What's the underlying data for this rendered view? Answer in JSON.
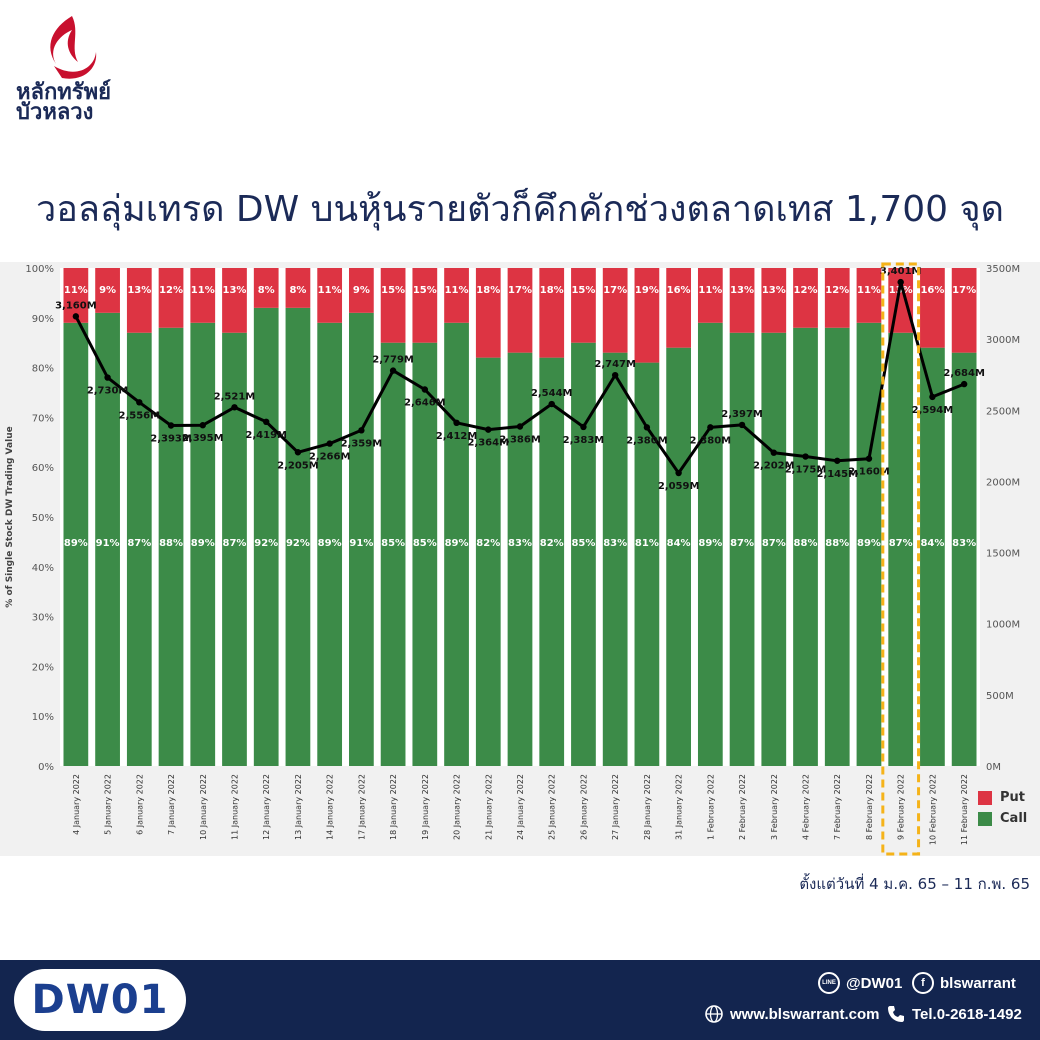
{
  "header": {
    "brand_line1": "หลักทรัพย์",
    "brand_line2": "บัวหลวง",
    "title": "วอลลุ่มเทรด DW บนหุ้นรายตัวก็คึกคักช่วงตลาดเทส 1,700 จุด"
  },
  "colors": {
    "call": "#3c8b48",
    "put": "#dd3443",
    "line": "#000000",
    "highlight": "#f5b319",
    "brand_red": "#c8102e"
  },
  "chart_data": {
    "type": "bar",
    "stacked": true,
    "ylabel": "% of Single Stock DW Trading Value",
    "ylim": [
      0,
      100
    ],
    "y_ticks": [
      "0%",
      "10%",
      "20%",
      "30%",
      "40%",
      "50%",
      "60%",
      "70%",
      "80%",
      "90%",
      "100%"
    ],
    "y2_ticks": [
      "0M",
      "500M",
      "1000M",
      "1500M",
      "2000M",
      "2500M",
      "3000M",
      "3500M"
    ],
    "y2lim": [
      0,
      3500
    ],
    "categories": [
      "4 January 2022",
      "5 January 2022",
      "6 January 2022",
      "7 January 2022",
      "10 January 2022",
      "11 January 2022",
      "12 January 2022",
      "13 January 2022",
      "14 January 2022",
      "17 January 2022",
      "18 January 2022",
      "19 January 2022",
      "20 January 2022",
      "21 January 2022",
      "24 January 2022",
      "25 January 2022",
      "26 January 2022",
      "27 January 2022",
      "28 January 2022",
      "31 January 2022",
      "1 February 2022",
      "2 February 2022",
      "3 February 2022",
      "4 February 2022",
      "7 February 2022",
      "8 February 2022",
      "9 February 2022",
      "10 February 2022",
      "11 February 2022"
    ],
    "series": [
      {
        "name": "Call",
        "values": [
          89,
          91,
          87,
          88,
          89,
          87,
          92,
          92,
          89,
          91,
          85,
          85,
          89,
          82,
          83,
          82,
          85,
          83,
          81,
          84,
          89,
          87,
          87,
          88,
          88,
          89,
          87,
          84,
          83
        ],
        "labels": [
          "89%",
          "91%",
          "87%",
          "88%",
          "89%",
          "87%",
          "92%",
          "92%",
          "89%",
          "91%",
          "85%",
          "85%",
          "89%",
          "82%",
          "83%",
          "82%",
          "85%",
          "83%",
          "81%",
          "84%",
          "89%",
          "87%",
          "87%",
          "88%",
          "88%",
          "89%",
          "87%",
          "84%",
          "83%"
        ]
      },
      {
        "name": "Put",
        "values": [
          11,
          9,
          13,
          12,
          11,
          13,
          8,
          8,
          11,
          9,
          15,
          15,
          11,
          18,
          17,
          18,
          15,
          17,
          19,
          16,
          11,
          13,
          13,
          12,
          12,
          11,
          13,
          16,
          17
        ],
        "labels": [
          "11%",
          "9%",
          "13%",
          "12%",
          "11%",
          "13%",
          "8%",
          "8%",
          "11%",
          "9%",
          "15%",
          "15%",
          "11%",
          "18%",
          "17%",
          "18%",
          "15%",
          "17%",
          "19%",
          "16%",
          "11%",
          "13%",
          "13%",
          "12%",
          "12%",
          "11%",
          "13%",
          "16%",
          "17%"
        ]
      }
    ],
    "line": {
      "values": [
        3160,
        2730,
        2556,
        2393,
        2395,
        2521,
        2419,
        2205,
        2266,
        2359,
        2779,
        2646,
        2412,
        2364,
        2386,
        2544,
        2383,
        2747,
        2380,
        2059,
        2380,
        2397,
        2202,
        2175,
        2145,
        2160,
        3401,
        2594,
        2684
      ],
      "labels": [
        "3,160M",
        "2,730M",
        "2,556M",
        "2,393M",
        "2,395M",
        "2,521M",
        "2,419M",
        "2,205M",
        "2,266M",
        "2,359M",
        "2,779M",
        "2,646M",
        "2,412M",
        "2,364M",
        "2,386M",
        "2,544M",
        "2,383M",
        "2,747M",
        "2,380M",
        "2,059M",
        "2,380M",
        "2,397M",
        "2,202M",
        "2,175M",
        "2,145M",
        "2,160M",
        "3,401M",
        "2,594M",
        "2,684M"
      ]
    },
    "highlight_category": "9 February 2022",
    "legend": {
      "position": "right",
      "entries": [
        "Put",
        "Call"
      ]
    }
  },
  "date_range": "ตั้งแต่วันที่ 4 ม.ค. 65 – 11 ก.พ. 65",
  "footer": {
    "logo": "DW01",
    "line_id": "@DW01",
    "facebook": "blswarrant",
    "website": "www.blswarrant.com",
    "tel": "Tel.0-2618-1492",
    "line_icon_text": "LINE",
    "fb_icon_text": "f"
  }
}
